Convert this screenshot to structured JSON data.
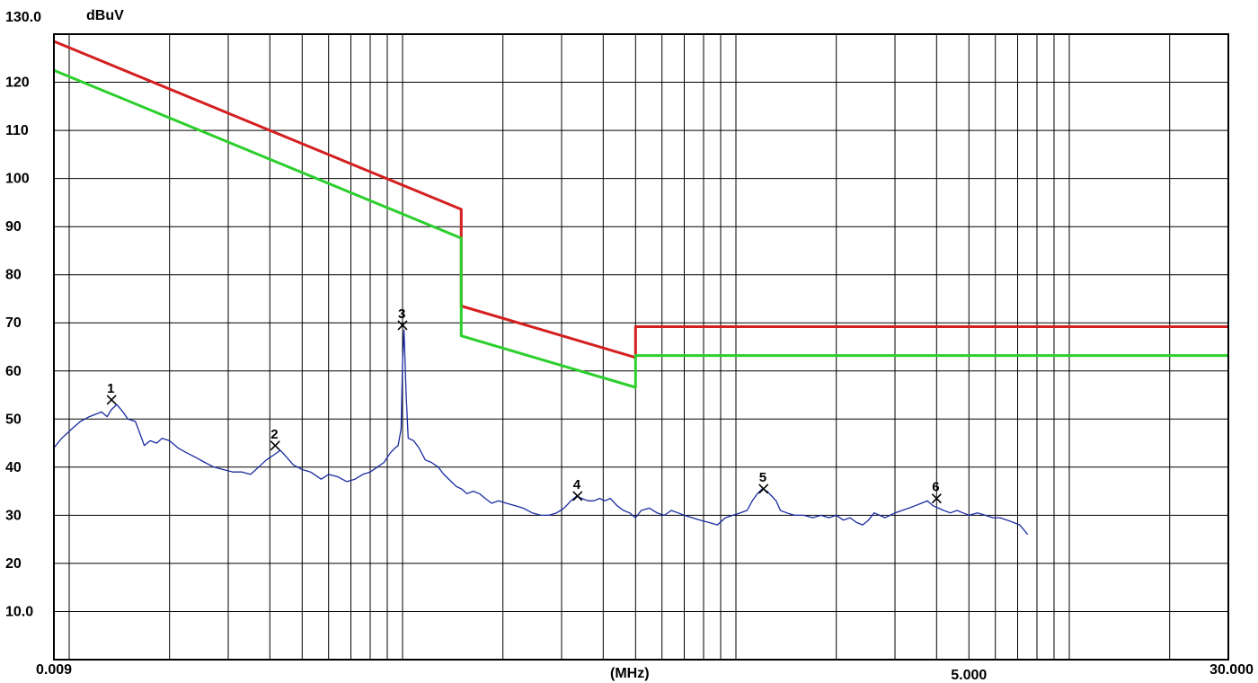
{
  "chart_data": {
    "type": "line",
    "y_unit": "dBuV",
    "x_unit": "(MHz)",
    "x_scale": "log",
    "xlim": [
      0.009,
      30.0
    ],
    "ylim": [
      0,
      130
    ],
    "grid": true,
    "y_tick_labels": [
      {
        "value": 130,
        "label": "130.0"
      },
      {
        "value": 120,
        "label": "120"
      },
      {
        "value": 110,
        "label": "110"
      },
      {
        "value": 100,
        "label": "100"
      },
      {
        "value": 90,
        "label": "90"
      },
      {
        "value": 80,
        "label": "80"
      },
      {
        "value": 70,
        "label": "70"
      },
      {
        "value": 60,
        "label": "60"
      },
      {
        "value": 50,
        "label": "50"
      },
      {
        "value": 40,
        "label": "40"
      },
      {
        "value": 30,
        "label": "30"
      },
      {
        "value": 20,
        "label": "20"
      },
      {
        "value": 10,
        "label": "10.0"
      }
    ],
    "x_tick_labels": [
      {
        "value": 0.009,
        "label": "0.009"
      },
      {
        "value": 5.0,
        "label": "5.000"
      },
      {
        "value": 30.0,
        "label": "30.000"
      }
    ],
    "series": [
      {
        "color": "#d42020",
        "points": [
          [
            0.009,
            128.5
          ],
          [
            0.15,
            93.6
          ],
          [
            0.15,
            88.5
          ],
          [
            0.15,
            73.5
          ],
          [
            0.5,
            62.8
          ],
          [
            0.5,
            69.2
          ],
          [
            30.0,
            69.2
          ]
        ]
      },
      {
        "color": "#2ccf2c",
        "points": [
          [
            0.009,
            122.5
          ],
          [
            0.15,
            87.6
          ],
          [
            0.15,
            67.3
          ],
          [
            0.5,
            56.6
          ],
          [
            0.5,
            63.2
          ],
          [
            30.0,
            63.2
          ]
        ]
      },
      {
        "color": "#1a2aa0",
        "points": [
          [
            0.009,
            44
          ],
          [
            0.0095,
            46
          ],
          [
            0.0102,
            48
          ],
          [
            0.0108,
            49.5
          ],
          [
            0.0115,
            50.5
          ],
          [
            0.012,
            51
          ],
          [
            0.0125,
            51.5
          ],
          [
            0.013,
            50.5
          ],
          [
            0.0134,
            52
          ],
          [
            0.0139,
            53
          ],
          [
            0.0145,
            51.5
          ],
          [
            0.015,
            50
          ],
          [
            0.0158,
            49.5
          ],
          [
            0.0163,
            47
          ],
          [
            0.0168,
            44.5
          ],
          [
            0.0175,
            45.5
          ],
          [
            0.0183,
            45
          ],
          [
            0.019,
            46
          ],
          [
            0.02,
            45.5
          ],
          [
            0.0212,
            44
          ],
          [
            0.0225,
            43
          ],
          [
            0.024,
            42
          ],
          [
            0.0255,
            41
          ],
          [
            0.0272,
            40
          ],
          [
            0.029,
            39.5
          ],
          [
            0.031,
            39
          ],
          [
            0.033,
            39
          ],
          [
            0.035,
            38.5
          ],
          [
            0.037,
            40
          ],
          [
            0.039,
            41.5
          ],
          [
            0.041,
            42.5
          ],
          [
            0.043,
            43.5
          ],
          [
            0.045,
            42
          ],
          [
            0.047,
            40.5
          ],
          [
            0.05,
            39.5
          ],
          [
            0.053,
            39
          ],
          [
            0.057,
            37.5
          ],
          [
            0.06,
            38.5
          ],
          [
            0.064,
            38
          ],
          [
            0.068,
            37
          ],
          [
            0.072,
            37.5
          ],
          [
            0.076,
            38.5
          ],
          [
            0.08,
            39
          ],
          [
            0.084,
            40
          ],
          [
            0.088,
            41
          ],
          [
            0.092,
            43
          ],
          [
            0.095,
            44
          ],
          [
            0.097,
            44.5
          ],
          [
            0.099,
            48
          ],
          [
            0.1,
            62
          ],
          [
            0.101,
            68.5
          ],
          [
            0.1025,
            55
          ],
          [
            0.104,
            46
          ],
          [
            0.108,
            45.5
          ],
          [
            0.112,
            44
          ],
          [
            0.117,
            41.5
          ],
          [
            0.122,
            41
          ],
          [
            0.128,
            40
          ],
          [
            0.133,
            38.5
          ],
          [
            0.14,
            37
          ],
          [
            0.145,
            36
          ],
          [
            0.15,
            35.5
          ],
          [
            0.156,
            34.5
          ],
          [
            0.163,
            35
          ],
          [
            0.17,
            34.5
          ],
          [
            0.177,
            33.5
          ],
          [
            0.185,
            32.5
          ],
          [
            0.194,
            33
          ],
          [
            0.205,
            32.5
          ],
          [
            0.218,
            32
          ],
          [
            0.23,
            31.5
          ],
          [
            0.245,
            30.5
          ],
          [
            0.26,
            30
          ],
          [
            0.275,
            30
          ],
          [
            0.29,
            30.5
          ],
          [
            0.305,
            31.5
          ],
          [
            0.32,
            33
          ],
          [
            0.333,
            34
          ],
          [
            0.345,
            33.5
          ],
          [
            0.36,
            33
          ],
          [
            0.375,
            33
          ],
          [
            0.39,
            33.5
          ],
          [
            0.405,
            33
          ],
          [
            0.42,
            33.5
          ],
          [
            0.44,
            32
          ],
          [
            0.46,
            31
          ],
          [
            0.48,
            30.5
          ],
          [
            0.5,
            29.5
          ],
          [
            0.52,
            31
          ],
          [
            0.55,
            31.5
          ],
          [
            0.58,
            30.5
          ],
          [
            0.61,
            30
          ],
          [
            0.64,
            31
          ],
          [
            0.67,
            30.5
          ],
          [
            0.7,
            30
          ],
          [
            0.74,
            29.5
          ],
          [
            0.78,
            29
          ],
          [
            0.83,
            28.5
          ],
          [
            0.88,
            28
          ],
          [
            0.93,
            29.5
          ],
          [
            0.98,
            30
          ],
          [
            1.03,
            30.5
          ],
          [
            1.08,
            31
          ],
          [
            1.12,
            33
          ],
          [
            1.16,
            34.5
          ],
          [
            1.2,
            35.5
          ],
          [
            1.24,
            35
          ],
          [
            1.28,
            34
          ],
          [
            1.32,
            33
          ],
          [
            1.36,
            31
          ],
          [
            1.42,
            30.5
          ],
          [
            1.5,
            30
          ],
          [
            1.6,
            30
          ],
          [
            1.7,
            29.5
          ],
          [
            1.8,
            30
          ],
          [
            1.9,
            29.5
          ],
          [
            2.0,
            30
          ],
          [
            2.1,
            29
          ],
          [
            2.2,
            29.5
          ],
          [
            2.3,
            28.5
          ],
          [
            2.4,
            28
          ],
          [
            2.5,
            29
          ],
          [
            2.6,
            30.5
          ],
          [
            2.7,
            30
          ],
          [
            2.8,
            29.5
          ],
          [
            2.9,
            30
          ],
          [
            3.0,
            30.5
          ],
          [
            3.15,
            31
          ],
          [
            3.3,
            31.5
          ],
          [
            3.45,
            32
          ],
          [
            3.6,
            32.5
          ],
          [
            3.75,
            33
          ],
          [
            3.9,
            32
          ],
          [
            4.05,
            31.5
          ],
          [
            4.2,
            31
          ],
          [
            4.4,
            30.5
          ],
          [
            4.6,
            31
          ],
          [
            4.8,
            30.5
          ],
          [
            5.0,
            30
          ],
          [
            5.3,
            30.5
          ],
          [
            5.6,
            30
          ],
          [
            5.9,
            29.5
          ],
          [
            6.2,
            29.5
          ],
          [
            6.5,
            29
          ],
          [
            6.8,
            28.5
          ],
          [
            7.1,
            28
          ],
          [
            7.3,
            27
          ],
          [
            7.5,
            26
          ]
        ]
      }
    ],
    "markers": [
      {
        "label": "1",
        "x": 0.0134,
        "y": 54
      },
      {
        "label": "2",
        "x": 0.0415,
        "y": 44.5
      },
      {
        "label": "3",
        "x": 0.1,
        "y": 69.5
      },
      {
        "label": "4",
        "x": 0.335,
        "y": 34
      },
      {
        "label": "5",
        "x": 1.21,
        "y": 35.5
      },
      {
        "label": "6",
        "x": 4.0,
        "y": 33.5
      }
    ]
  }
}
